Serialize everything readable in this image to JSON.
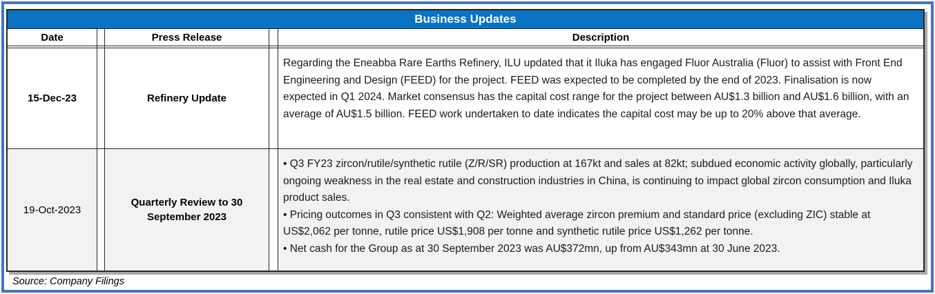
{
  "page": {
    "title": "Business Updates",
    "source_note": "Source: Company Filings",
    "colors": {
      "title_bar_bg": "#0A73C4",
      "title_text": "#FFFFFF",
      "outer_border": "#4472C4",
      "table_border": "#262626",
      "alt_row_bg": "#F2F2F2",
      "shadow": "#A9A9A9"
    }
  },
  "table": {
    "columns": [
      "Date",
      "Press Release",
      "Description"
    ],
    "rows": [
      {
        "date": "15-Dec-23",
        "press_release": "Refinery Update",
        "description": [
          "Regarding the Eneabba Rare Earths Refinery, ILU updated that it Iluka has engaged Fluor Australia (Fluor) to assist with Front End Engineering and Design (FEED) for the project. FEED was expected to be completed by the end of 2023. Finalisation is now expected in Q1 2024. Market consensus has the capital cost range for the project between AU$1.3 billion and AU$1.6 billion, with an average of AU$1.5 billion. FEED work undertaken to date indicates the capital cost may be up to 20% above that average."
        ]
      },
      {
        "date": "19-Oct-2023",
        "press_release": "Quarterly Review to 30 September 2023",
        "description": [
          "• Q3 FY23 zircon/rutile/synthetic rutile (Z/R/SR) production at 167kt and sales at 82kt; subdued economic activity globally, particularly ongoing weakness in the real estate and construction industries in China, is continuing to impact global zircon consumption and Iluka product sales.",
          "• Pricing outcomes in Q3 consistent with Q2: Weighted average zircon premium and standard price (excluding ZIC) stable at US$2,062 per tonne, rutile price US$1,908 per tonne and synthetic rutile price US$1,262 per tonne.",
          "• Net cash for the Group as at 30 September 2023 was AU$372mn, up from AU$343mn at 30 June 2023."
        ]
      }
    ]
  }
}
